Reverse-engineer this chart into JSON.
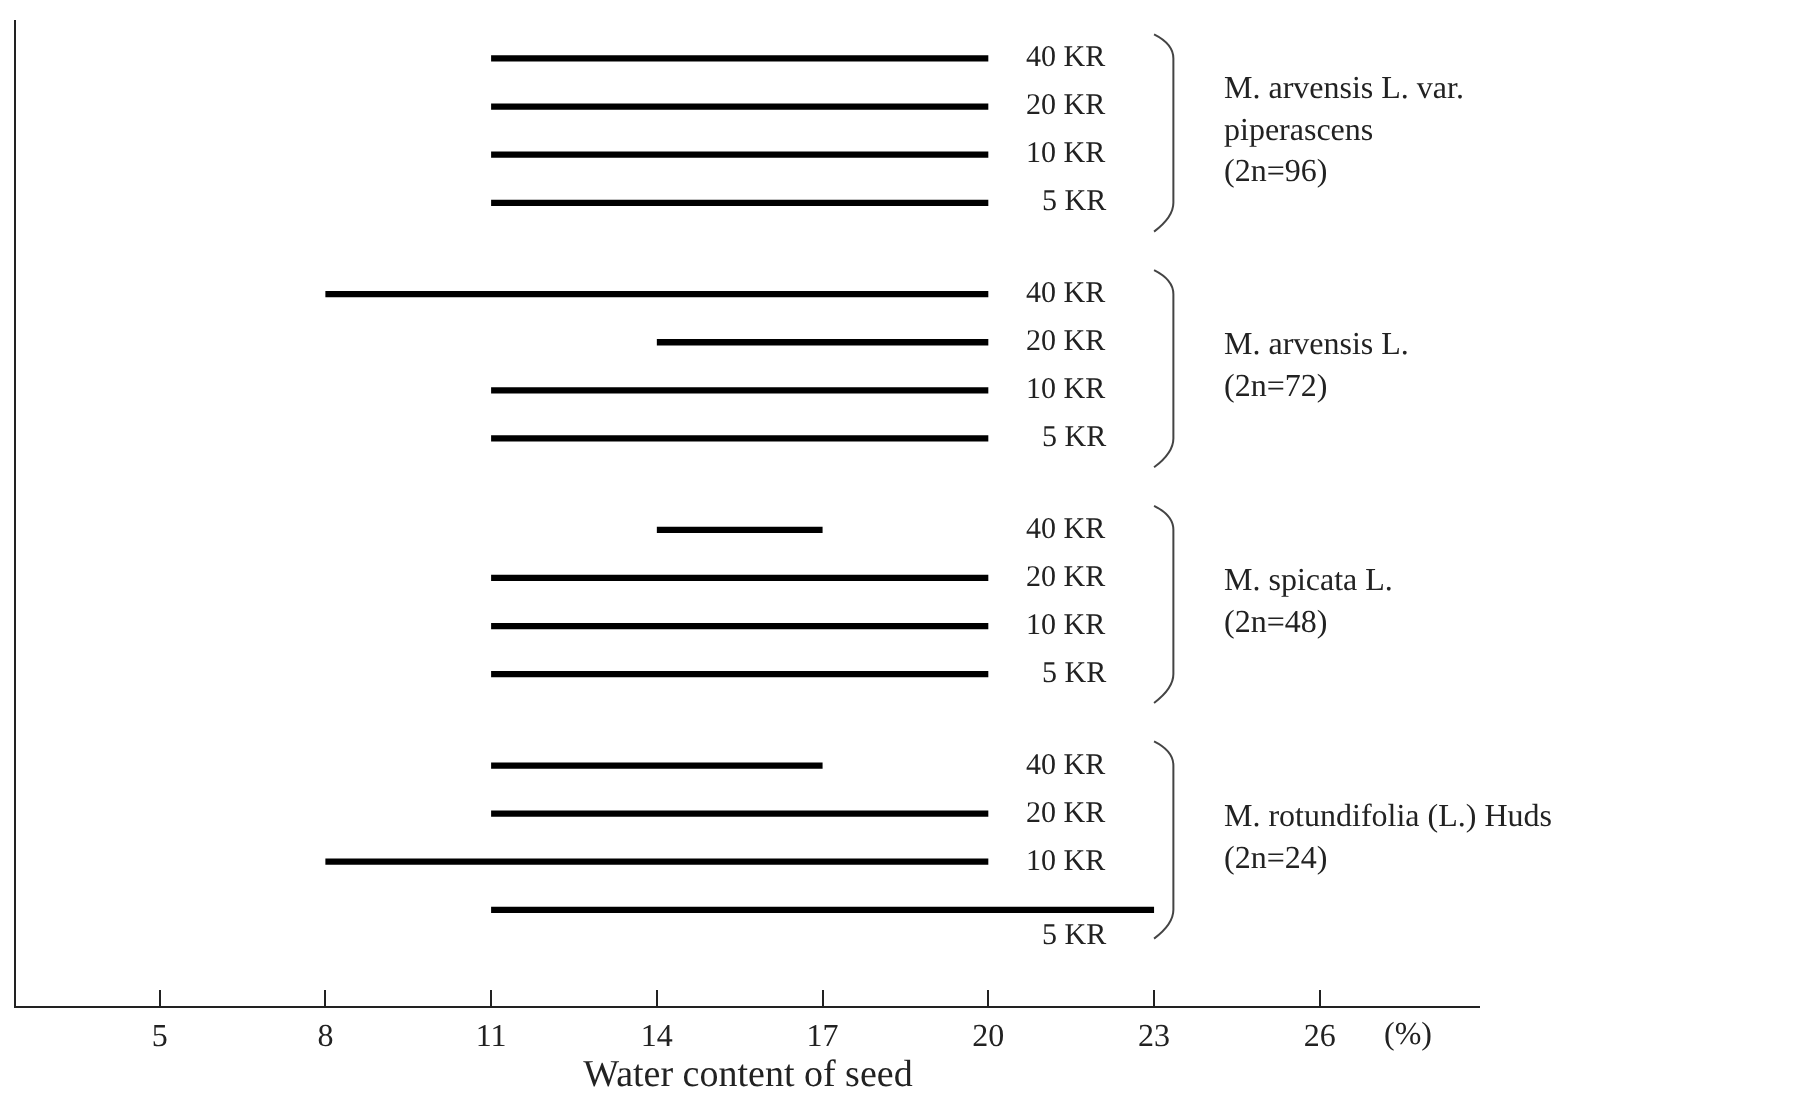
{
  "chart_data": {
    "type": "bar",
    "orientation": "horizontal",
    "categories": [
      "40 KR",
      "20 KR",
      "10 KR",
      "5 KR",
      "40 KR",
      "20 KR",
      "10 KR",
      "5 KR",
      "40 KR",
      "20 KR",
      "10 KR",
      "5 KR",
      "40 KR",
      "20 KR",
      "10 KR",
      "5 KR"
    ],
    "base": [
      11,
      11,
      11,
      11,
      8,
      14,
      11,
      11,
      14,
      11,
      11,
      11,
      11,
      11,
      8,
      11
    ],
    "values": [
      9,
      9,
      9,
      9,
      12,
      6,
      9,
      9,
      3,
      9,
      9,
      9,
      6,
      9,
      12,
      12
    ],
    "color": "#000000",
    "xlim": [
      2.4,
      28.9
    ],
    "xticks": [
      5,
      8,
      11,
      14,
      17,
      20,
      23,
      26
    ],
    "xlabel": "Water content of seed",
    "annotations": [
      "M. arvensis L. var.\npiperascens\n(2n=96)",
      "M. arvensis L.\n(2n=72)",
      "M. spicata L.\n(2n=48)",
      "M. rotundifolia (L.) Huds\n(2n=24)",
      "(%)"
    ]
  }
}
